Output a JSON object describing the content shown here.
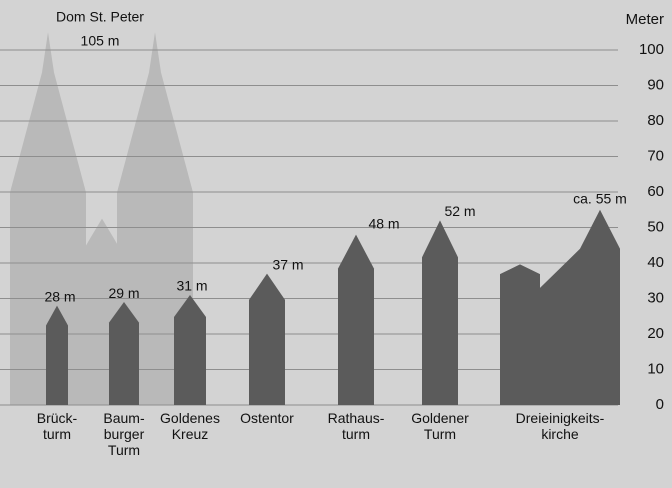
{
  "chart_data": {
    "type": "tower-silhouettes",
    "categories": [
      "Dom St. Peter",
      "Brück-\nturm",
      "Baum-\nburger\nTurm",
      "Goldenes\nKreuz",
      "Ostentor",
      "Rathaus-\nturm",
      "Goldener\nTurm",
      "Dreieinigkeits-\nkirche"
    ],
    "values": [
      105,
      28,
      29,
      31,
      37,
      48,
      52,
      55
    ],
    "value_labels": [
      "105 m",
      "28 m",
      "29 m",
      "31 m",
      "37 m",
      "48 m",
      "52 m",
      "ca. 55 m"
    ],
    "colors": [
      "#b9b9b9",
      "#5b5b5b",
      "#5b5b5b",
      "#5b5b5b",
      "#5b5b5b",
      "#5b5b5b",
      "#5b5b5b",
      "#5b5b5b"
    ],
    "y_label": "Meter",
    "ylim": [
      0,
      100
    ],
    "yticks": [
      0,
      10,
      20,
      30,
      40,
      50,
      60,
      70,
      80,
      90,
      100
    ],
    "grid": true
  }
}
